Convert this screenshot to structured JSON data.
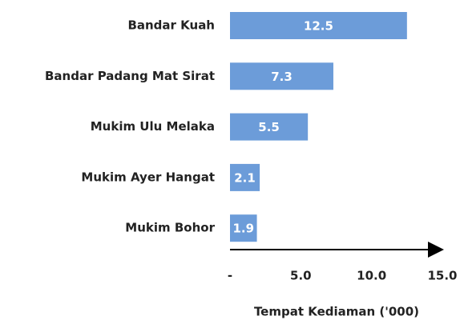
{
  "chart_data": {
    "type": "bar",
    "orientation": "horizontal",
    "categories": [
      "Bandar Kuah",
      "Bandar Padang Mat Sirat",
      "Mukim Ulu Melaka",
      "Mukim Ayer Hangat",
      "Mukim Bohor"
    ],
    "values": [
      12.5,
      7.3,
      5.5,
      2.1,
      1.9
    ],
    "color": "#6c9cd9",
    "xlabel": "Tempat Kediaman ('000)",
    "xlim": [
      0,
      15
    ],
    "xticks": [
      {
        "value": 0,
        "label": "-"
      },
      {
        "value": 5,
        "label": "5.0"
      },
      {
        "value": 10,
        "label": "10.0"
      },
      {
        "value": 15,
        "label": "15.0"
      }
    ],
    "grid": false
  }
}
